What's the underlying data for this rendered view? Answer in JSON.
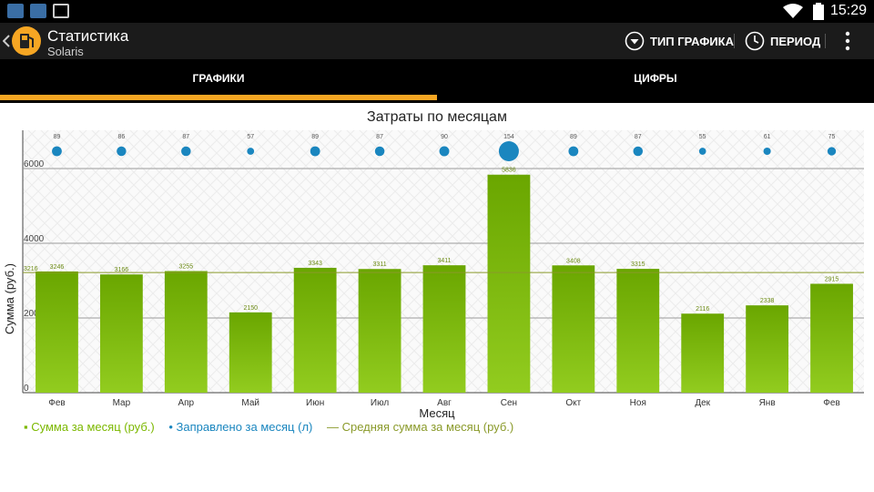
{
  "status_bar": {
    "time": "15:29"
  },
  "app": {
    "title": "Статистика",
    "subtitle": "Solaris"
  },
  "actions": {
    "chart_type_label": "ТИП ГРАФИКА",
    "period_label": "ПЕРИОД"
  },
  "tabs": [
    {
      "label": "ГРАФИКИ",
      "selected": true
    },
    {
      "label": "ЦИФРЫ",
      "selected": false
    }
  ],
  "colors": {
    "accent": "#f6a623",
    "bar": "#7cb800",
    "bubble": "#1a86bf",
    "avg_line": "#8a9a2a"
  },
  "chart_data": {
    "type": "bar",
    "title": "Затраты по месяцам",
    "xlabel": "Месяц",
    "ylabel": "Сумма (руб.)",
    "ylim": [
      0,
      7000
    ],
    "yticks": [
      0,
      2000,
      4000,
      6000
    ],
    "categories": [
      "Фев",
      "Мар",
      "Апр",
      "Май",
      "Июн",
      "Июл",
      "Авг",
      "Сен",
      "Окт",
      "Ноя",
      "Дек",
      "Янв",
      "Фев"
    ],
    "series": [
      {
        "name": "Сумма за месяц (руб.)",
        "values": [
          3246,
          3166,
          3255,
          2150,
          3343,
          3311,
          3411,
          5836,
          3408,
          3315,
          2116,
          2338,
          2915
        ]
      },
      {
        "name": "Заправлено за месяц (л)",
        "values": [
          89,
          86,
          87,
          57,
          89,
          87,
          90,
          154,
          89,
          87,
          55,
          61,
          75
        ]
      }
    ],
    "average": {
      "name": "Средняя сумма за месяц (руб.)",
      "value": 3216,
      "label": "3216"
    },
    "legend_position": "bottom-left"
  }
}
